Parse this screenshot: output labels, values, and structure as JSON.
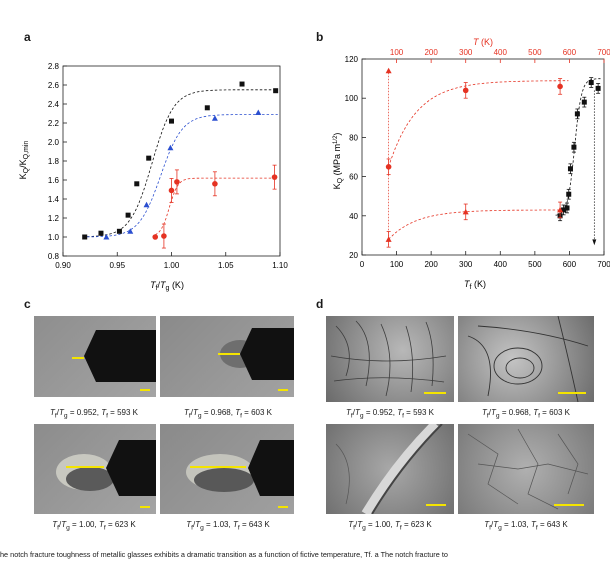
{
  "panel_labels": {
    "a": "a",
    "b": "b",
    "c": "c",
    "d": "d"
  },
  "chart_data": [
    {
      "type": "scatter",
      "xlabel": "Tf/Tg (K)",
      "ylabel": "KQ/KQ,min",
      "xlim": [
        0.9,
        1.1
      ],
      "ylim": [
        0.8,
        2.8
      ],
      "xticks": [
        "0.90",
        "0.95",
        "1.00",
        "1.05",
        "1.10"
      ],
      "yticks": [
        "0.8",
        "1.0",
        "1.2",
        "1.4",
        "1.6",
        "1.8",
        "2.0",
        "2.2",
        "2.4",
        "2.6",
        "2.8"
      ],
      "series": [
        {
          "marker": "square",
          "color": "#111111",
          "x": [
            0.92,
            0.935,
            0.952,
            0.96,
            0.968,
            0.979,
            1.0,
            1.033,
            1.065,
            1.096
          ],
          "y": [
            1.0,
            1.04,
            1.06,
            1.23,
            1.56,
            1.83,
            2.22,
            2.36,
            2.61,
            2.54
          ]
        },
        {
          "marker": "triangle",
          "color": "#2b4fd0",
          "x": [
            0.94,
            0.962,
            0.977,
            0.999,
            1.04,
            1.08
          ],
          "y": [
            1.0,
            1.06,
            1.34,
            1.94,
            2.25,
            2.31
          ]
        },
        {
          "marker": "circle",
          "color": "#e53222",
          "x": [
            0.985,
            0.993,
            1.0,
            1.005,
            1.04,
            1.095
          ],
          "y": [
            1.0,
            1.01,
            1.49,
            1.58,
            1.56,
            1.63
          ]
        }
      ]
    },
    {
      "type": "scatter",
      "xlabel": "Tf (K)",
      "ylabel": "KQ (MPa m1/2)",
      "top_label": "T (K)",
      "xlim": [
        0,
        700
      ],
      "ylim": [
        20,
        120
      ],
      "xticks": [
        "0",
        "100",
        "200",
        "300",
        "400",
        "500",
        "600",
        "700"
      ],
      "top_ticks": [
        "100",
        "200",
        "300",
        "400",
        "500",
        "600",
        "700"
      ],
      "yticks": [
        "20",
        "40",
        "60",
        "80",
        "100",
        "120"
      ],
      "series": [
        {
          "marker": "square",
          "color": "#111111",
          "x": [
            573,
            583,
            593,
            598,
            603,
            613,
            623,
            643,
            663,
            683
          ],
          "y": [
            40,
            43,
            44,
            51,
            64,
            75,
            92,
            98,
            108,
            105
          ]
        },
        {
          "marker": "circle",
          "color": "#e53222",
          "x": [
            77,
            300,
            573
          ],
          "y": [
            65,
            104,
            106
          ]
        },
        {
          "marker": "triangle",
          "color": "#e53222",
          "x": [
            77,
            300,
            573
          ],
          "y": [
            28,
            42,
            43
          ]
        }
      ]
    }
  ],
  "panel_c": {
    "captions": [
      {
        "ratio": "0.952",
        "tf": "593 K"
      },
      {
        "ratio": "0.968",
        "tf": "603 K"
      },
      {
        "ratio": "1.00",
        "tf": "623 K"
      },
      {
        "ratio": "1.03",
        "tf": "643 K"
      }
    ]
  },
  "panel_d": {
    "captions": [
      {
        "ratio": "0.952",
        "tf": "593 K"
      },
      {
        "ratio": "0.968",
        "tf": "603 K"
      },
      {
        "ratio": "1.00",
        "tf": "623 K"
      },
      {
        "ratio": "1.03",
        "tf": "643 K"
      }
    ]
  },
  "caption_text": "he notch fracture toughness of metallic glasses exhibits a dramatic transition as a function of fictive temperature, Tf. a The notch fracture to",
  "colors": {
    "black": "#111111",
    "blue": "#2b4fd0",
    "red": "#e53222",
    "scale": "#f4e400"
  }
}
